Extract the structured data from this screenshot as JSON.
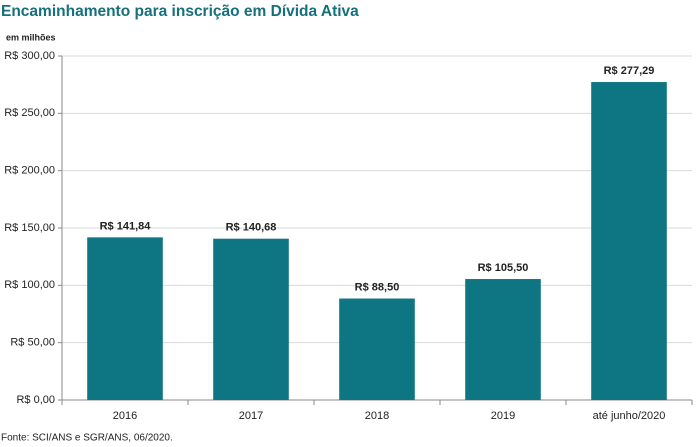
{
  "chart_data": {
    "type": "bar",
    "title": "Encaminhamento para inscrição em Dívida Ativa",
    "subtitle": "em milhões",
    "categories": [
      "2016",
      "2017",
      "2018",
      "2019",
      "até junho/2020"
    ],
    "values": [
      141.84,
      140.68,
      88.5,
      105.5,
      277.29
    ],
    "value_labels": [
      "R$ 141,84",
      "R$ 140,68",
      "R$ 88,50",
      "R$ 105,50",
      "R$ 277,29"
    ],
    "color": "#0e7682",
    "ylim": [
      0,
      300
    ],
    "yticks": [
      {
        "value": 0,
        "label": "R$ 0,00"
      },
      {
        "value": 50,
        "label": "R$ 50,00"
      },
      {
        "value": 100,
        "label": "R$ 100,00"
      },
      {
        "value": 150,
        "label": "R$ 150,00"
      },
      {
        "value": 200,
        "label": "R$ 200,00"
      },
      {
        "value": 250,
        "label": "R$ 250,00"
      },
      {
        "value": 300,
        "label": "R$ 300,00"
      }
    ],
    "grid": true,
    "source": "Fonte: SCI/ANS e SGR/ANS, 06/2020."
  }
}
